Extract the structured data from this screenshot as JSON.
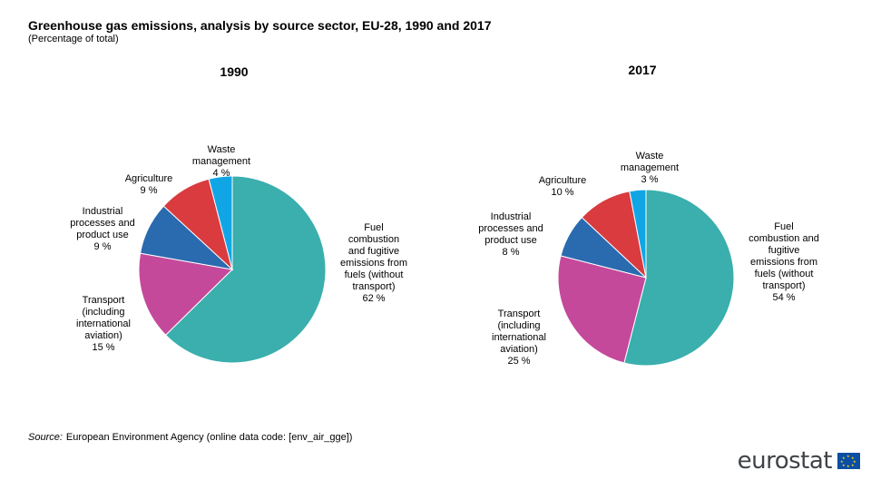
{
  "title": "Greenhouse gas emissions, analysis by source sector, EU-28, 1990 and 2017",
  "subtitle": "(Percentage of total)",
  "source_label": "Source:",
  "source_text": "European Environment Agency (online data code: [env_air_gge])",
  "logo_text": "eurostat",
  "chart_data": [
    {
      "type": "pie",
      "title": "1990",
      "slices": [
        {
          "name": "Fuel combustion and fugitive emissions from fuels (without transport)",
          "value": 62,
          "label": "62 %",
          "color": "#3aafad"
        },
        {
          "name": "Transport (including international aviation)",
          "value": 15,
          "label": "15 %",
          "color": "#c4499a"
        },
        {
          "name": "Industrial processes and product use",
          "value": 9,
          "label": "9 %",
          "color": "#2a6aaf"
        },
        {
          "name": "Agriculture",
          "value": 9,
          "label": "9 %",
          "color": "#d93b3f"
        },
        {
          "name": "Waste management",
          "value": 4,
          "label": "4 %",
          "color": "#10a6e6"
        }
      ]
    },
    {
      "type": "pie",
      "title": "2017",
      "slices": [
        {
          "name": "Fuel combustion and fugitive emissions from fuels (without transport)",
          "value": 54,
          "label": "54 %",
          "color": "#3aafad"
        },
        {
          "name": "Transport (including international aviation)",
          "value": 25,
          "label": "25 %",
          "color": "#c4499a"
        },
        {
          "name": "Industrial processes and product use",
          "value": 8,
          "label": "8 %",
          "color": "#2a6aaf"
        },
        {
          "name": "Agriculture",
          "value": 10,
          "label": "10 %",
          "color": "#d93b3f"
        },
        {
          "name": "Waste management",
          "value": 3,
          "label": "3 %",
          "color": "#10a6e6"
        }
      ]
    }
  ],
  "labels": {
    "fuel": [
      "Fuel",
      "combustion",
      "and fugitive",
      "emissions from",
      "fuels (without",
      "transport)"
    ],
    "fuel_2017": [
      "Fuel",
      "combustion and",
      "fugitive",
      "emissions from",
      "fuels (without",
      "transport)"
    ],
    "transport": [
      "Transport",
      "(including",
      "international",
      "aviation)"
    ],
    "industrial": [
      "Industrial",
      "processes and",
      "product use"
    ],
    "agriculture": [
      "Agriculture"
    ],
    "waste": [
      "Waste",
      "management"
    ]
  }
}
